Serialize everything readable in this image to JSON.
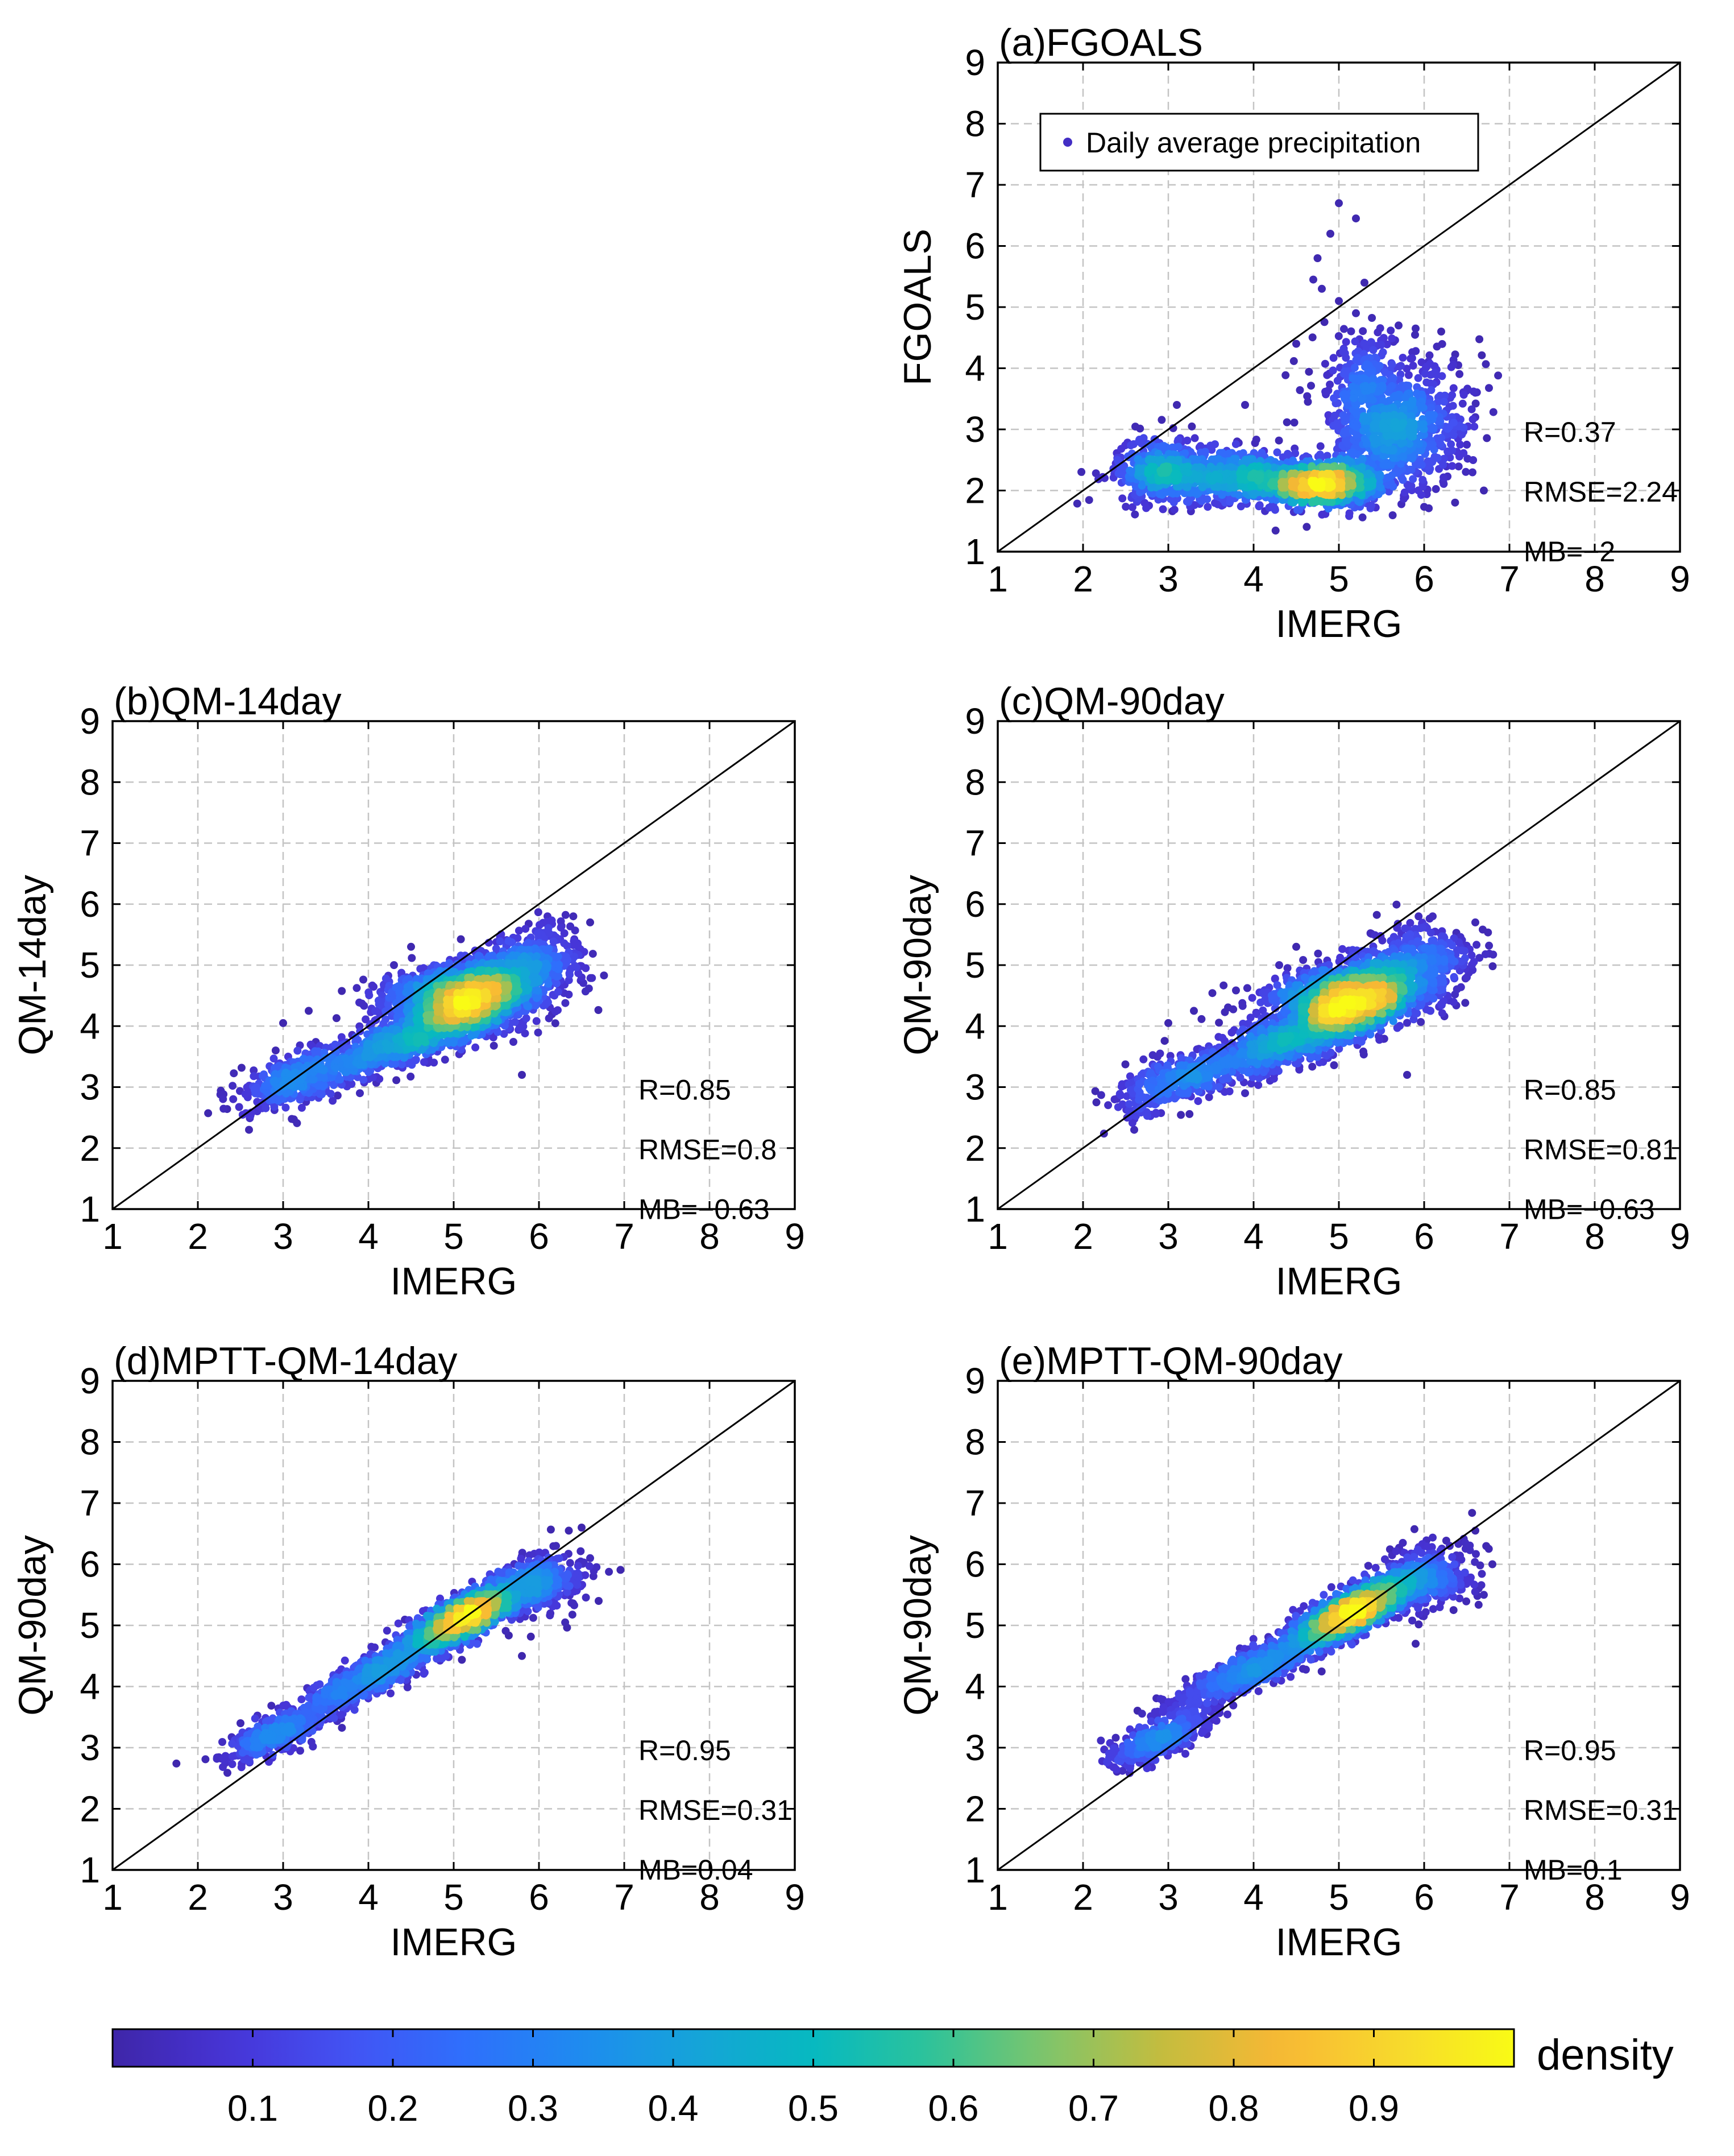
{
  "figure": {
    "colorbar": {
      "label": "density",
      "ticks": [
        "0.1",
        "0.2",
        "0.3",
        "0.4",
        "0.5",
        "0.6",
        "0.7",
        "0.8",
        "0.9"
      ],
      "tick_values": [
        0.1,
        0.2,
        0.3,
        0.4,
        0.5,
        0.6,
        0.7,
        0.8,
        0.9
      ],
      "range": [
        0,
        1
      ]
    },
    "colormap": [
      "#3e26a8",
      "#4734d6",
      "#4352f3",
      "#2f6ffc",
      "#1e8bf0",
      "#15a4d8",
      "#07b9c0",
      "#2dc39a",
      "#80c56a",
      "#c5bc3e",
      "#f8b834",
      "#f7d82d",
      "#f9fb15"
    ]
  },
  "chart_data": [
    {
      "id": "a",
      "type": "scatter",
      "title": "(a)FGOALS",
      "xlabel": "IMERG",
      "ylabel": "FGOALS",
      "xlim": [
        1,
        9
      ],
      "ylim": [
        1,
        9
      ],
      "xticks": [
        1,
        2,
        3,
        4,
        5,
        6,
        7,
        8,
        9
      ],
      "yticks": [
        1,
        2,
        3,
        4,
        5,
        6,
        7,
        8,
        9
      ],
      "grid": true,
      "reference_line": "1:1",
      "legend": {
        "label": "Daily average precipitation",
        "position": "top-left"
      },
      "stats": [
        "R=0.37",
        "RMSE=2.24",
        "MB=−2"
      ],
      "clusters": [
        {
          "x": 4.8,
          "y": 2.1,
          "sx": 0.35,
          "sy": 0.18,
          "rot": 0.0,
          "n": 900
        },
        {
          "x": 3.7,
          "y": 2.25,
          "sx": 0.55,
          "sy": 0.22,
          "rot": 0.0,
          "n": 650
        },
        {
          "x": 2.9,
          "y": 2.35,
          "sx": 0.25,
          "sy": 0.28,
          "rot": 0.0,
          "n": 300
        },
        {
          "x": 5.6,
          "y": 2.9,
          "sx": 0.35,
          "sy": 0.45,
          "rot": 0.0,
          "n": 600
        },
        {
          "x": 5.3,
          "y": 3.8,
          "sx": 0.3,
          "sy": 0.4,
          "rot": 0.0,
          "n": 260
        },
        {
          "x": 6.1,
          "y": 3.2,
          "sx": 0.3,
          "sy": 0.45,
          "rot": 0.0,
          "n": 180
        }
      ],
      "outliers": [
        [
          5.0,
          6.7
        ],
        [
          5.2,
          6.45
        ],
        [
          4.9,
          6.2
        ],
        [
          4.75,
          5.8
        ],
        [
          4.8,
          5.3
        ],
        [
          5.0,
          5.1
        ],
        [
          5.3,
          5.4
        ],
        [
          4.7,
          5.45
        ],
        [
          4.5,
          4.4
        ],
        [
          3.9,
          3.4
        ],
        [
          3.1,
          3.4
        ],
        [
          6.6,
          3.2
        ],
        [
          6.7,
          2.0
        ],
        [
          6.5,
          2.75
        ],
        [
          5.2,
          4.9
        ],
        [
          5.7,
          4.7
        ],
        [
          6.2,
          4.6
        ],
        [
          6.4,
          4.05
        ],
        [
          6.6,
          3.6
        ],
        [
          5.9,
          4.65
        ],
        [
          4.4,
          2.6
        ],
        [
          4.2,
          2.5
        ]
      ]
    },
    {
      "id": "b",
      "type": "scatter",
      "title": "(b)QM-14day",
      "xlabel": "IMERG",
      "ylabel": "QM-14day",
      "xlim": [
        1,
        9
      ],
      "ylim": [
        1,
        9
      ],
      "xticks": [
        1,
        2,
        3,
        4,
        5,
        6,
        7,
        8,
        9
      ],
      "yticks": [
        1,
        2,
        3,
        4,
        5,
        6,
        7,
        8,
        9
      ],
      "grid": true,
      "reference_line": "1:1",
      "stats": [
        "R=0.85",
        "RMSE=0.8",
        "MB=−0.63"
      ],
      "clusters": [
        {
          "x": 5.2,
          "y": 4.4,
          "sx": 0.4,
          "sy": 0.24,
          "rot": 0.55,
          "n": 1600
        },
        {
          "x": 4.3,
          "y": 3.7,
          "sx": 0.55,
          "sy": 0.2,
          "rot": 0.45,
          "n": 650
        },
        {
          "x": 3.1,
          "y": 3.1,
          "sx": 0.4,
          "sy": 0.18,
          "rot": 0.5,
          "n": 330
        },
        {
          "x": 5.9,
          "y": 5.0,
          "sx": 0.35,
          "sy": 0.3,
          "rot": 0.5,
          "n": 420
        },
        {
          "x": 4.7,
          "y": 4.65,
          "sx": 0.4,
          "sy": 0.18,
          "rot": 0.4,
          "n": 250
        }
      ],
      "outliers": [
        [
          3.3,
          4.25
        ],
        [
          3.0,
          4.05
        ],
        [
          4.5,
          5.3
        ],
        [
          6.6,
          5.7
        ],
        [
          6.5,
          4.8
        ],
        [
          5.8,
          3.2
        ],
        [
          3.9,
          2.9
        ],
        [
          2.6,
          2.3
        ],
        [
          6.1,
          5.8
        ],
        [
          4.3,
          5.0
        ]
      ]
    },
    {
      "id": "c",
      "type": "scatter",
      "title": "(c)QM-90day",
      "xlabel": "IMERG",
      "ylabel": "QM-90day",
      "xlim": [
        1,
        9
      ],
      "ylim": [
        1,
        9
      ],
      "xticks": [
        1,
        2,
        3,
        4,
        5,
        6,
        7,
        8,
        9
      ],
      "yticks": [
        1,
        2,
        3,
        4,
        5,
        6,
        7,
        8,
        9
      ],
      "grid": true,
      "reference_line": "1:1",
      "stats": [
        "R=0.85",
        "RMSE=0.81",
        "MB=−0.63"
      ],
      "clusters": [
        {
          "x": 5.2,
          "y": 4.4,
          "sx": 0.4,
          "sy": 0.24,
          "rot": 0.55,
          "n": 1600
        },
        {
          "x": 4.3,
          "y": 3.7,
          "sx": 0.55,
          "sy": 0.2,
          "rot": 0.45,
          "n": 650
        },
        {
          "x": 3.1,
          "y": 3.1,
          "sx": 0.4,
          "sy": 0.18,
          "rot": 0.5,
          "n": 330
        },
        {
          "x": 5.9,
          "y": 5.0,
          "sx": 0.35,
          "sy": 0.3,
          "rot": 0.5,
          "n": 420
        },
        {
          "x": 4.7,
          "y": 4.65,
          "sx": 0.4,
          "sy": 0.18,
          "rot": 0.4,
          "n": 250
        }
      ],
      "outliers": [
        [
          3.3,
          4.25
        ],
        [
          3.0,
          4.05
        ],
        [
          4.5,
          5.3
        ],
        [
          6.6,
          5.7
        ],
        [
          6.5,
          4.8
        ],
        [
          5.8,
          3.2
        ],
        [
          3.9,
          2.9
        ],
        [
          2.6,
          2.3
        ],
        [
          6.1,
          5.8
        ],
        [
          4.3,
          5.0
        ]
      ]
    },
    {
      "id": "d",
      "type": "scatter",
      "title": "(d)MPTT-QM-14day",
      "xlabel": "IMERG",
      "ylabel": "QM-90day",
      "xlim": [
        1,
        9
      ],
      "ylim": [
        1,
        9
      ],
      "xticks": [
        1,
        2,
        3,
        4,
        5,
        6,
        7,
        8,
        9
      ],
      "yticks": [
        1,
        2,
        3,
        4,
        5,
        6,
        7,
        8,
        9
      ],
      "grid": true,
      "reference_line": "1:1",
      "stats": [
        "R=0.95",
        "RMSE=0.31",
        "MB=0.04"
      ],
      "clusters": [
        {
          "x": 5.15,
          "y": 5.15,
          "sx": 0.45,
          "sy": 0.14,
          "rot": 0.68,
          "n": 1700
        },
        {
          "x": 4.0,
          "y": 4.15,
          "sx": 0.55,
          "sy": 0.14,
          "rot": 0.65,
          "n": 700
        },
        {
          "x": 2.9,
          "y": 3.2,
          "sx": 0.35,
          "sy": 0.13,
          "rot": 0.6,
          "n": 380
        },
        {
          "x": 6.0,
          "y": 5.65,
          "sx": 0.3,
          "sy": 0.22,
          "rot": 0.6,
          "n": 380
        }
      ],
      "outliers": [
        [
          6.35,
          6.55
        ],
        [
          6.5,
          6.6
        ],
        [
          6.2,
          6.3
        ],
        [
          6.7,
          5.4
        ],
        [
          6.6,
          6.1
        ],
        [
          3.2,
          2.95
        ],
        [
          2.5,
          3.4
        ],
        [
          5.8,
          4.5
        ]
      ]
    },
    {
      "id": "e",
      "type": "scatter",
      "title": "(e)MPTT-QM-90day",
      "xlabel": "IMERG",
      "ylabel": "QM-90day",
      "xlim": [
        1,
        9
      ],
      "ylim": [
        1,
        9
      ],
      "xticks": [
        1,
        2,
        3,
        4,
        5,
        6,
        7,
        8,
        9
      ],
      "yticks": [
        1,
        2,
        3,
        4,
        5,
        6,
        7,
        8,
        9
      ],
      "grid": true,
      "reference_line": "1:1",
      "stats": [
        "R=0.95",
        "RMSE=0.31",
        "MB=0.1"
      ],
      "clusters": [
        {
          "x": 5.2,
          "y": 5.25,
          "sx": 0.45,
          "sy": 0.14,
          "rot": 0.66,
          "n": 1700
        },
        {
          "x": 4.0,
          "y": 4.3,
          "sx": 0.6,
          "sy": 0.14,
          "rot": 0.62,
          "n": 700
        },
        {
          "x": 2.9,
          "y": 3.15,
          "sx": 0.35,
          "sy": 0.13,
          "rot": 0.6,
          "n": 380
        },
        {
          "x": 6.05,
          "y": 5.8,
          "sx": 0.3,
          "sy": 0.24,
          "rot": 0.6,
          "n": 380
        }
      ],
      "outliers": [
        [
          6.6,
          6.55
        ],
        [
          6.3,
          6.3
        ],
        [
          5.75,
          6.35
        ],
        [
          6.7,
          5.5
        ],
        [
          6.8,
          6.0
        ],
        [
          3.2,
          2.9
        ],
        [
          2.55,
          3.3
        ],
        [
          5.9,
          4.7
        ]
      ]
    }
  ]
}
